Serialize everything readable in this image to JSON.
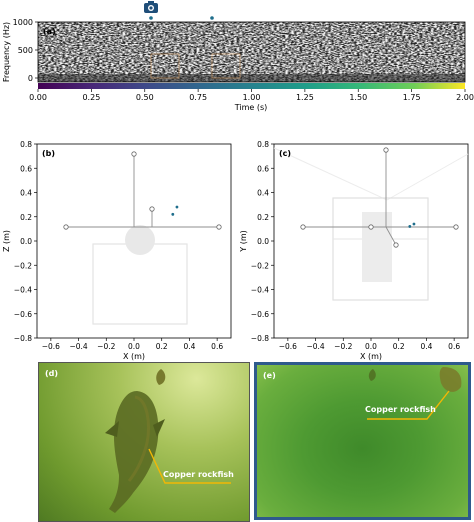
{
  "panels": {
    "a": {
      "tag": "(a)",
      "ylabel": "Frequency (Hz)",
      "yticks": [
        "1000",
        "500",
        "0"
      ],
      "xlabel": "Time (s)",
      "xticks": [
        "0.00",
        "0.25",
        "0.50",
        "0.75",
        "1.00",
        "1.25",
        "1.50",
        "1.75",
        "2.00"
      ],
      "colormap": "viridis",
      "markers": [
        {
          "x_s": 0.53,
          "icon": "camera-icon"
        },
        {
          "x_s": 0.82,
          "icon": "dot"
        }
      ]
    },
    "b": {
      "tag": "(b)",
      "xlabel": "X (m)",
      "ylabel": "Z (m)",
      "xticks": [
        "−0.6",
        "−0.4",
        "−0.2",
        "0.0",
        "0.2",
        "0.4",
        "0.6"
      ],
      "yticks": [
        "0.8",
        "0.6",
        "0.4",
        "0.2",
        "0.0",
        "−0.2",
        "−0.4",
        "−0.6",
        "−0.8"
      ],
      "points": [
        {
          "x": 0.28,
          "z": 0.22
        },
        {
          "x": 0.31,
          "z": 0.28
        }
      ]
    },
    "c": {
      "tag": "(c)",
      "xlabel": "X (m)",
      "ylabel": "Y (m)",
      "xticks": [
        "−0.6",
        "−0.4",
        "−0.2",
        "0.0",
        "0.2",
        "0.4",
        "0.6"
      ],
      "yticks": [
        "0.8",
        "0.6",
        "0.4",
        "0.2",
        "0.0",
        "−0.2",
        "−0.4",
        "−0.6",
        "−0.8"
      ],
      "points": [
        {
          "x": 0.28,
          "y": 0.12
        },
        {
          "x": 0.31,
          "y": 0.14
        }
      ]
    },
    "d": {
      "tag": "(d)",
      "label": "Copper rockfish"
    },
    "e": {
      "tag": "(e)",
      "label": "Copper rockfish"
    }
  },
  "colors": {
    "accent_point": "#1f6e8c",
    "callout": "#f2b705",
    "frame_e": "#2e5a8c",
    "water_d": "#6f9a2e",
    "water_e": "#3f8a2a"
  }
}
